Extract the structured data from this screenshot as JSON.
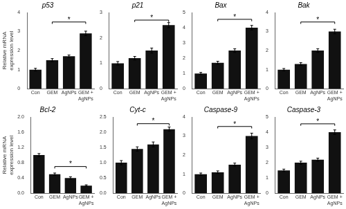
{
  "chart_data": [
    {
      "type": "bar",
      "title": "p53",
      "ylabel": "Relative mRNA\nexpression level",
      "categories": [
        "Con",
        "GEM",
        "AgNPs",
        "GEM +\nAgNPs"
      ],
      "values": [
        1.0,
        1.5,
        1.7,
        2.9
      ],
      "errors": [
        0.07,
        0.08,
        0.07,
        0.12
      ],
      "color": "#111111",
      "ylim": [
        0,
        4
      ],
      "yticks": [
        0,
        1,
        2,
        3,
        4
      ],
      "grid": false,
      "annotations": [
        {
          "text": "*",
          "from": "GEM",
          "to": "GEM +\nAgNPs",
          "y": 3.5
        }
      ]
    },
    {
      "type": "bar",
      "title": "p21",
      "categories": [
        "Con",
        "GEM",
        "AgNPs",
        "GEM +\nAgNPs"
      ],
      "values": [
        1.0,
        1.2,
        1.5,
        2.5
      ],
      "errors": [
        0.07,
        0.07,
        0.1,
        0.1
      ],
      "color": "#111111",
      "ylim": [
        0,
        3
      ],
      "yticks": [
        0,
        1,
        2,
        3
      ],
      "grid": false,
      "annotations": [
        {
          "text": "*",
          "from": "GEM",
          "to": "GEM +\nAgNPs",
          "y": 2.7
        }
      ]
    },
    {
      "type": "bar",
      "title": "Bax",
      "categories": [
        "Con",
        "GEM",
        "AgNPs",
        "GEM +\nAgNPs"
      ],
      "values": [
        1.0,
        1.7,
        2.5,
        4.0
      ],
      "errors": [
        0.07,
        0.1,
        0.12,
        0.15
      ],
      "color": "#111111",
      "ylim": [
        0,
        5
      ],
      "yticks": [
        0,
        1,
        2,
        3,
        4,
        5
      ],
      "grid": false,
      "annotations": [
        {
          "text": "*",
          "from": "GEM",
          "to": "GEM +\nAgNPs",
          "y": 4.55
        }
      ]
    },
    {
      "type": "bar",
      "title": "Bak",
      "categories": [
        "Con",
        "GEM",
        "AgNPs",
        "GEM +\nAgNPs"
      ],
      "values": [
        1.0,
        1.3,
        2.0,
        3.0
      ],
      "errors": [
        0.06,
        0.07,
        0.1,
        0.12
      ],
      "color": "#111111",
      "ylim": [
        0,
        4
      ],
      "yticks": [
        0,
        1,
        2,
        3,
        4
      ],
      "grid": false,
      "annotations": [
        {
          "text": "*",
          "from": "GEM",
          "to": "GEM +\nAgNPs",
          "y": 3.5
        }
      ]
    },
    {
      "type": "bar",
      "title": "Bcl-2",
      "ylabel": "Relative mRNA\nexpression level",
      "categories": [
        "Con",
        "GEM",
        "AgNPs",
        "GEM +\nAgNPs"
      ],
      "values": [
        1.0,
        0.5,
        0.4,
        0.2
      ],
      "errors": [
        0.04,
        0.03,
        0.03,
        0.02
      ],
      "color": "#111111",
      "ylim": [
        0,
        2
      ],
      "yticks": [
        {
          "value": 0,
          "label": "0.0"
        },
        0.4,
        0.8,
        1.2,
        1.6,
        {
          "value": 2.0,
          "label": "2.0"
        }
      ],
      "grid": false,
      "annotations": [
        {
          "text": "*",
          "from": "GEM",
          "to": "GEM +\nAgNPs",
          "y": 0.7
        }
      ]
    },
    {
      "type": "bar",
      "title": "Cyt-c",
      "categories": [
        "Con",
        "GEM",
        "AgNPs",
        "GEM +\nAgNPs"
      ],
      "values": [
        1.0,
        1.45,
        1.6,
        2.1
      ],
      "errors": [
        0.07,
        0.07,
        0.08,
        0.07
      ],
      "color": "#111111",
      "ylim": [
        0,
        2.5
      ],
      "yticks": [
        {
          "value": 0,
          "label": "0.0"
        },
        0.5,
        {
          "value": 1.0,
          "label": "1.0"
        },
        1.5,
        {
          "value": 2.0,
          "label": "2.0"
        },
        2.5
      ],
      "grid": false,
      "annotations": [
        {
          "text": "*",
          "from": "GEM",
          "to": "GEM +\nAgNPs",
          "y": 2.28
        }
      ]
    },
    {
      "type": "bar",
      "title": "Caspase-9",
      "categories": [
        "Con",
        "GEM",
        "AgNPs",
        "GEM +\nAgNPs"
      ],
      "values": [
        1.0,
        1.1,
        1.5,
        3.0
      ],
      "errors": [
        0.06,
        0.07,
        0.08,
        0.15
      ],
      "color": "#111111",
      "ylim": [
        0,
        4
      ],
      "yticks": [
        0,
        1,
        2,
        3,
        4
      ],
      "grid": false,
      "annotations": [
        {
          "text": "*",
          "from": "GEM",
          "to": "GEM +\nAgNPs",
          "y": 3.5
        }
      ]
    },
    {
      "type": "bar",
      "title": "Caspase-3",
      "categories": [
        "Con",
        "GEM",
        "AgNPs",
        "GEM +\nAgNPs"
      ],
      "values": [
        1.5,
        2.0,
        2.2,
        4.0
      ],
      "errors": [
        0.08,
        0.1,
        0.1,
        0.15
      ],
      "color": "#111111",
      "ylim": [
        0,
        5
      ],
      "yticks": [
        0,
        1,
        2,
        3,
        4,
        5
      ],
      "grid": false,
      "annotations": [
        {
          "text": "*",
          "from": "GEM",
          "to": "GEM +\nAgNPs",
          "y": 4.55
        }
      ]
    }
  ]
}
